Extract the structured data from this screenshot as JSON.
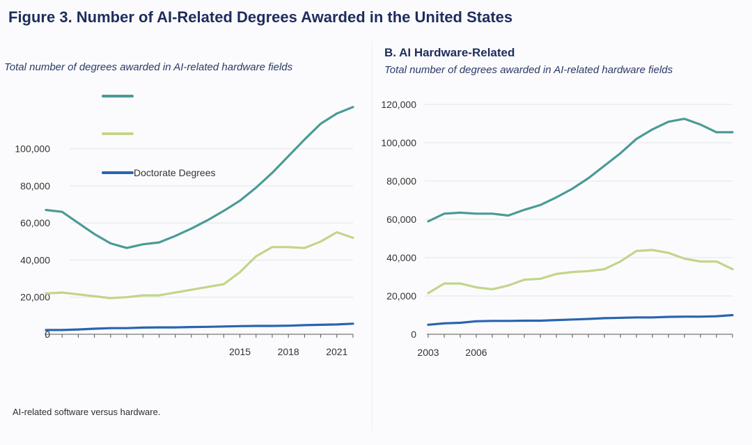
{
  "figure_title": "Figure 3. Number of AI-Related Degrees Awarded in the United States",
  "footnote": "AI-related software versus hardware.",
  "colors": {
    "bachelors": "#4a9b96",
    "masters": "#c2d58a",
    "doctorate": "#2a64b0",
    "grid": "#e1e4ea",
    "axis": "#555555"
  },
  "chart_data": [
    {
      "type": "line",
      "title": "",
      "subtitle": "Total number of degrees awarded in AI-related hardware fields",
      "x": [
        2003,
        2004,
        2005,
        2006,
        2007,
        2008,
        2009,
        2010,
        2011,
        2012,
        2013,
        2014,
        2015,
        2016,
        2017,
        2018,
        2019,
        2020,
        2021,
        2022
      ],
      "x_ticks": [
        2015,
        2018,
        2021
      ],
      "ylim": [
        0,
        125000
      ],
      "y_ticks": [
        0,
        20000,
        40000,
        60000,
        80000,
        100000
      ],
      "y_tick_labels": [
        "0",
        "20,000",
        "40,000",
        "60,000",
        "80,000",
        "100,000"
      ],
      "grid": true,
      "legend": {
        "placement": "top-left",
        "labels": [
          "",
          "",
          "Doctorate Degrees"
        ]
      },
      "series": [
        {
          "name": "",
          "color_key": "bachelors",
          "values": [
            67000,
            66000,
            60000,
            54000,
            49000,
            46500,
            48500,
            49500,
            53000,
            57000,
            61500,
            66500,
            72000,
            79000,
            87000,
            96000,
            105000,
            113500,
            119000,
            122500
          ]
        },
        {
          "name": "",
          "color_key": "masters",
          "values": [
            22000,
            22500,
            21500,
            20500,
            19500,
            20000,
            21000,
            21000,
            22500,
            24000,
            25500,
            27000,
            33500,
            42000,
            47000,
            47000,
            46500,
            50000,
            55000,
            52000
          ]
        },
        {
          "name": "Doctorate Degrees",
          "color_key": "doctorate",
          "values": [
            2300,
            2300,
            2600,
            3000,
            3300,
            3300,
            3600,
            3700,
            3700,
            3900,
            4000,
            4200,
            4400,
            4500,
            4500,
            4600,
            4900,
            5100,
            5300,
            5700
          ]
        }
      ]
    },
    {
      "type": "line",
      "title": "B. AI Hardware-Related",
      "subtitle": "Total number of degrees awarded in AI-related hardware fields",
      "x": [
        2003,
        2004,
        2005,
        2006,
        2007,
        2008,
        2009,
        2010,
        2011,
        2012,
        2013,
        2014,
        2015,
        2016,
        2017,
        2018,
        2019,
        2020,
        2021,
        2022
      ],
      "x_ticks": [
        2003,
        2006
      ],
      "ylim": [
        0,
        120000
      ],
      "y_ticks": [
        0,
        20000,
        40000,
        60000,
        80000,
        100000,
        120000
      ],
      "y_tick_labels": [
        "0",
        "20,000",
        "40,000",
        "60,000",
        "80,000",
        "100,000",
        "120,000"
      ],
      "grid": true,
      "series": [
        {
          "name": "",
          "color_key": "bachelors",
          "values": [
            59000,
            63000,
            63500,
            63000,
            63000,
            62000,
            65000,
            67500,
            71500,
            76000,
            81500,
            88000,
            94500,
            102000,
            107000,
            111000,
            112500,
            109500,
            105500,
            105500
          ]
        },
        {
          "name": "",
          "color_key": "masters",
          "values": [
            21500,
            26500,
            26500,
            24500,
            23500,
            25500,
            28500,
            29000,
            31500,
            32500,
            33000,
            34000,
            38000,
            43500,
            44000,
            42500,
            39500,
            38000,
            38000,
            34000
          ]
        },
        {
          "name": "",
          "color_key": "doctorate",
          "values": [
            5000,
            5700,
            6000,
            6800,
            7000,
            7000,
            7100,
            7100,
            7400,
            7700,
            8000,
            8400,
            8600,
            8800,
            8800,
            9100,
            9200,
            9200,
            9400,
            10000
          ]
        }
      ]
    }
  ]
}
